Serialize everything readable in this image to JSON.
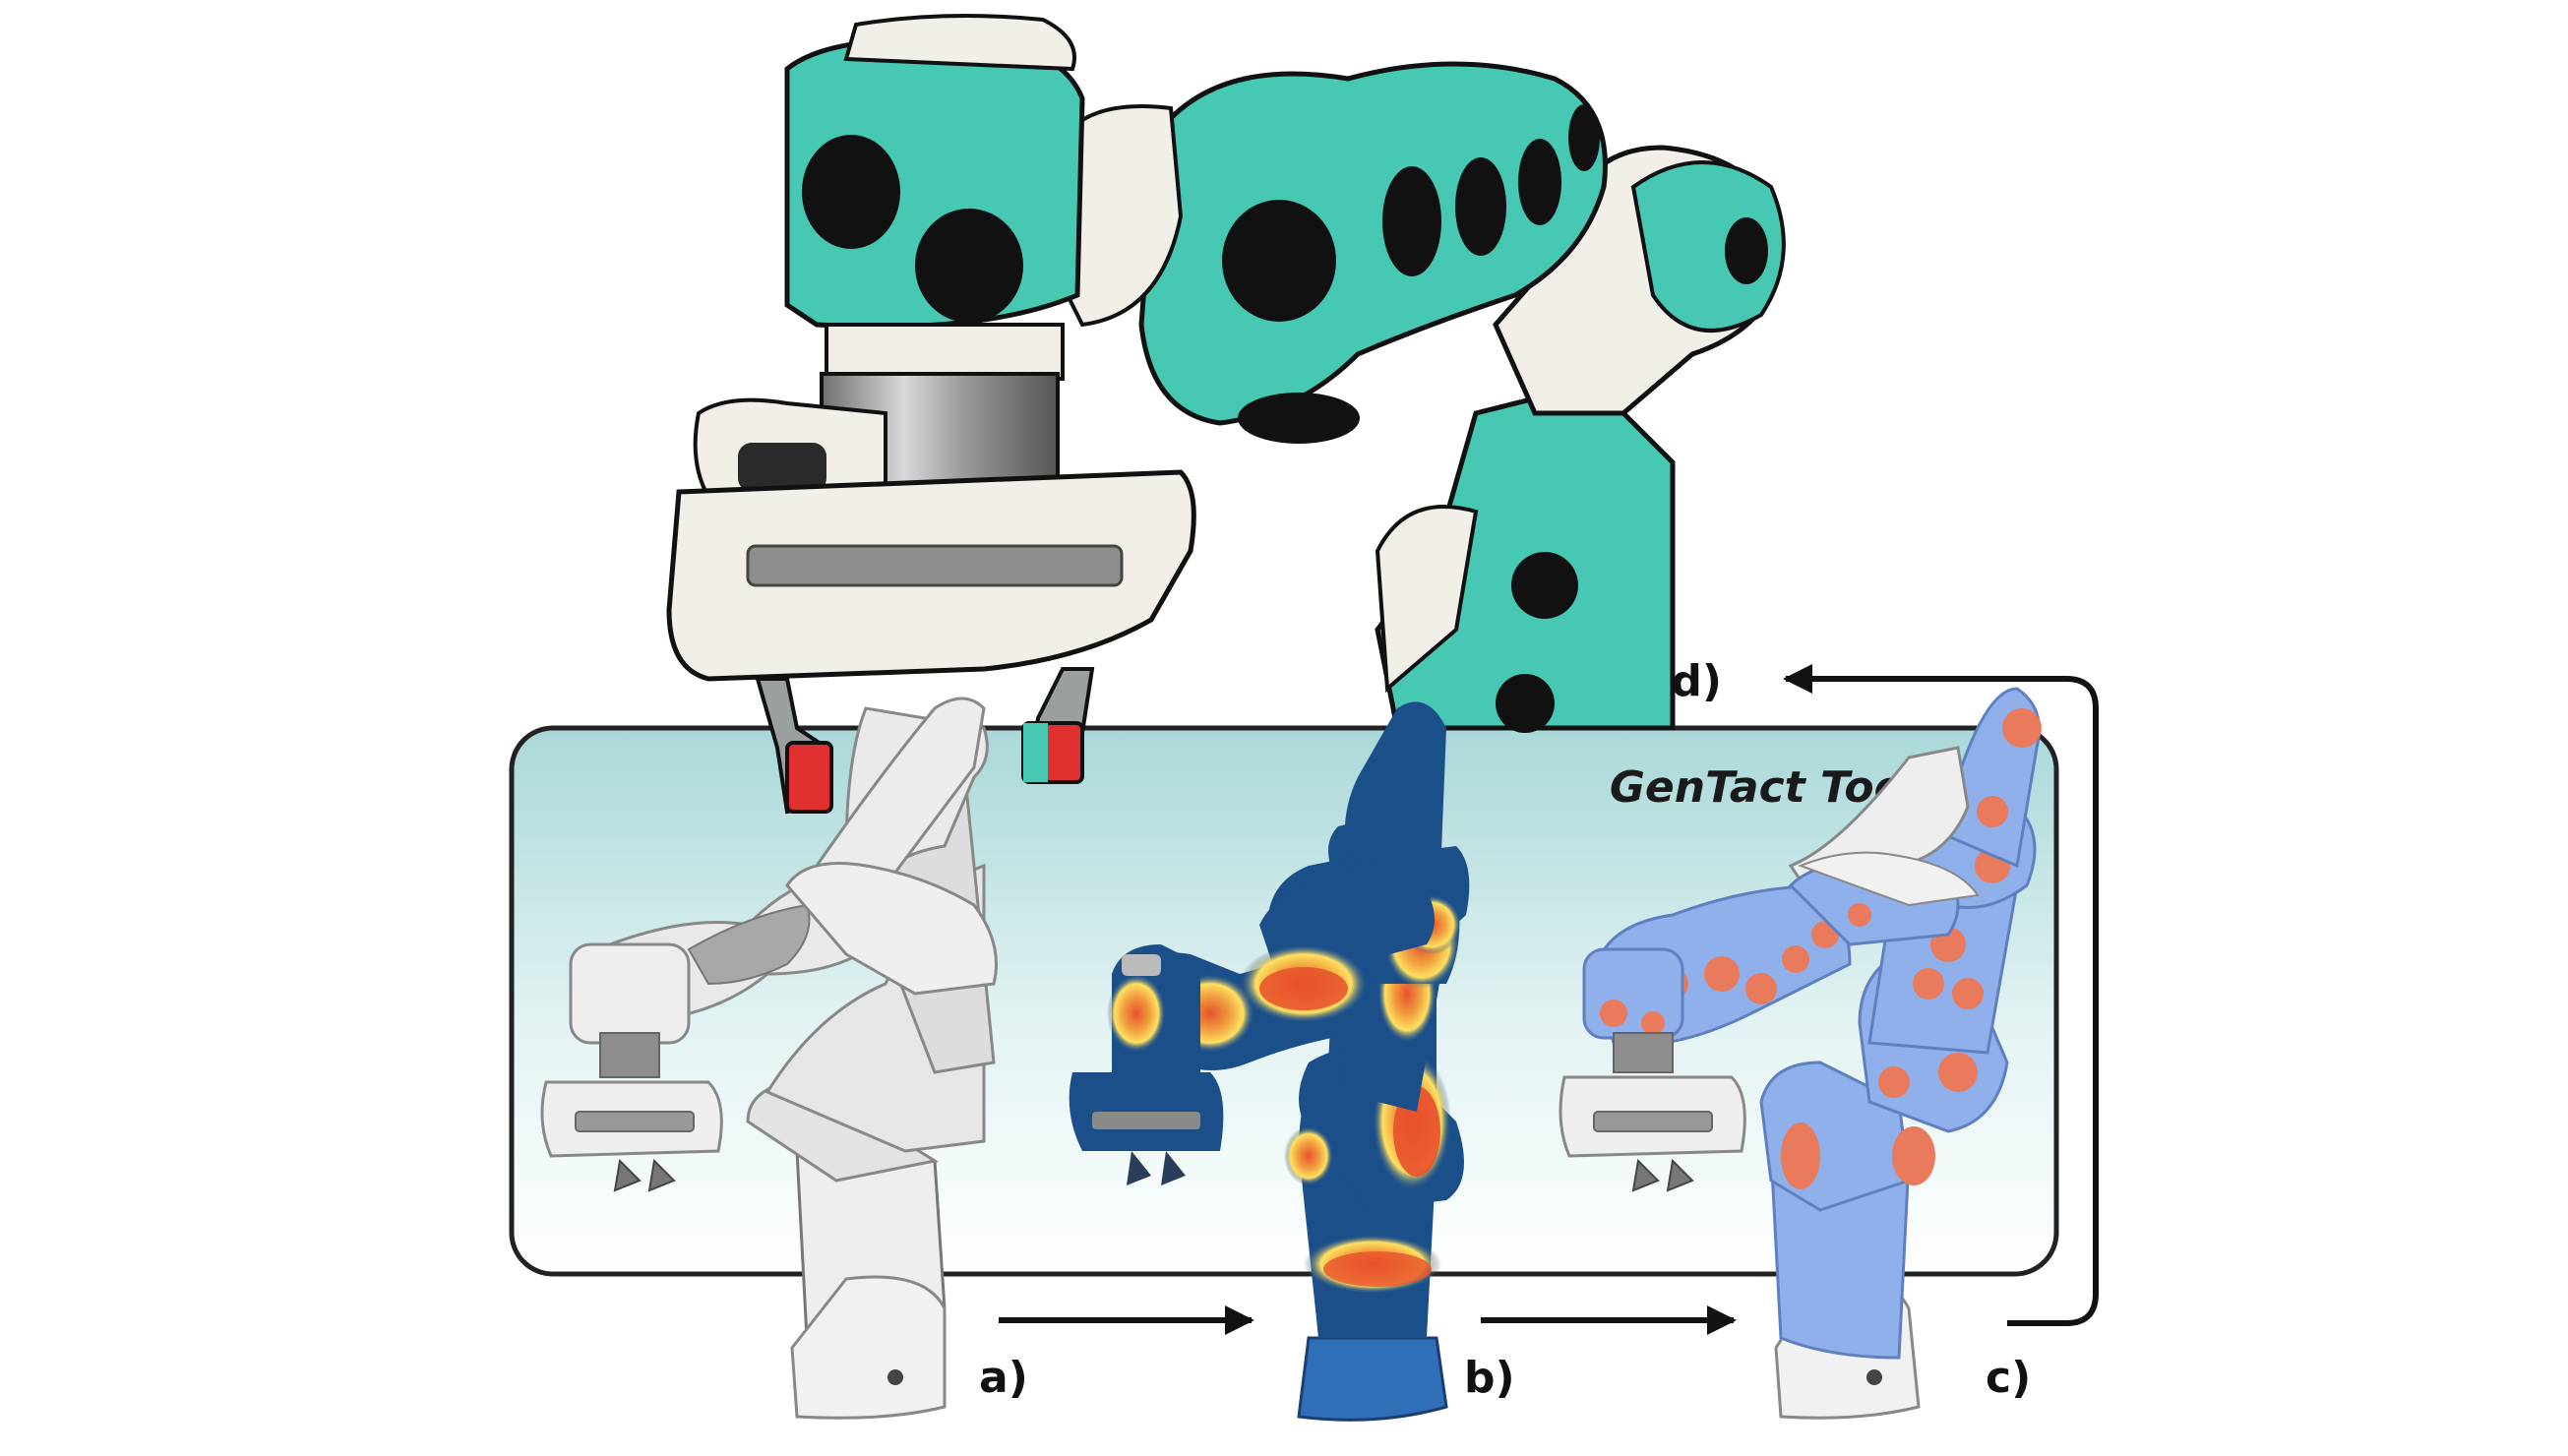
{
  "toolbox": {
    "title": "GenTact Toolbox"
  },
  "steps": [
    {
      "label": "a)",
      "icon": "robot-arm-plain-icon"
    },
    {
      "label": "b)",
      "icon": "robot-arm-heatmap-icon"
    },
    {
      "label": "c)",
      "icon": "robot-arm-sensor-layout-icon"
    },
    {
      "label": "d)",
      "icon": "robot-arm-physical-skin-photo"
    }
  ],
  "colors": {
    "box_top": "#a9d8d8",
    "box_bottom": "#ffffff",
    "skin_teal": "#46c8b2",
    "sensor_pad": "#111111",
    "heat_low": "#1b4f8a",
    "heat_high": "#e8512c",
    "layout_blue": "#8fb0ea",
    "layout_pad": "#e97a5c",
    "arm_white": "#eeeeee"
  }
}
